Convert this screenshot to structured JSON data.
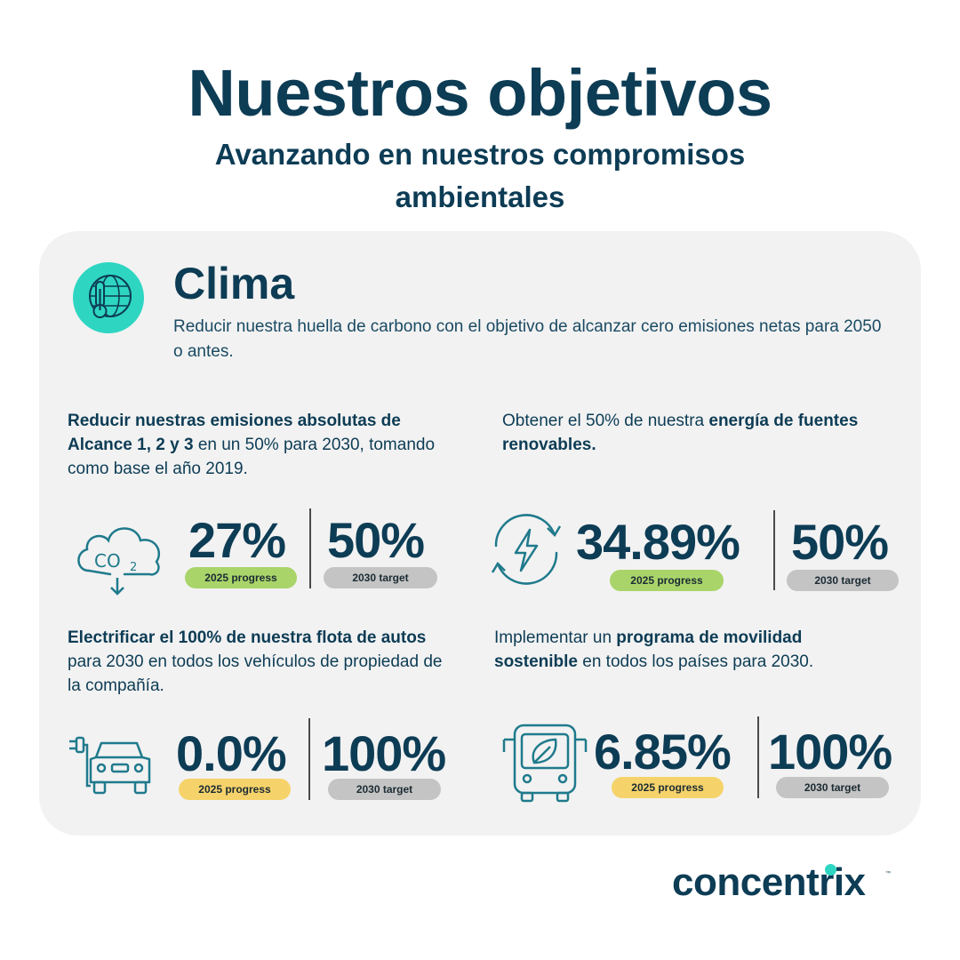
{
  "header": {
    "title": "Nuestros objetivos",
    "subtitle": "Avanzando en nuestros compromisos ambientales"
  },
  "clima": {
    "icon": "globe-thermometer-icon",
    "title": "Clima",
    "description": "Reducir nuestra huella de carbono con el objetivo de alcanzar cero emisiones netas para 2050 o antes."
  },
  "goals": [
    {
      "icon": "co2-cloud-icon",
      "text_bold": "Reducir nuestras emisiones absolutas de Alcance 1, 2 y 3",
      "text_rest": " en un 50% para 2030, tomando como base el año 2019.",
      "progress_value": "27%",
      "progress_label": "2025 progress",
      "target_value": "50%",
      "target_label": "2030 target",
      "progress_color": "#a9d46a"
    },
    {
      "icon": "renewable-energy-icon",
      "text_pre": "Obtener el 50% de nuestra ",
      "text_bold": "energía de fuentes renovables.",
      "progress_value": "34.89%",
      "progress_label": "2025 progress",
      "target_value": "50%",
      "target_label": "2030 target",
      "progress_color": "#a9d46a"
    },
    {
      "icon": "electric-car-icon",
      "text_bold": "Electrificar el 100% de nuestra flota de autos",
      "text_rest": " para 2030 en todos los vehículos de propiedad de la compañía.",
      "progress_value": "0.0%",
      "progress_label": "2025 progress",
      "target_value": "100%",
      "target_label": "2030 target",
      "progress_color": "#f6d36a"
    },
    {
      "icon": "eco-bus-icon",
      "text_pre": "Implementar un ",
      "text_bold": "programa de movilidad sostenible",
      "text_rest": " en todos los países para 2030.",
      "progress_value": "6.85%",
      "progress_label": "2025 progress",
      "target_value": "100%",
      "target_label": "2030 target",
      "progress_color": "#f6d36a"
    }
  ],
  "brand": {
    "logo_text": "concentrix",
    "accent": "#2ed6c2",
    "primary": "#0d3c55"
  }
}
